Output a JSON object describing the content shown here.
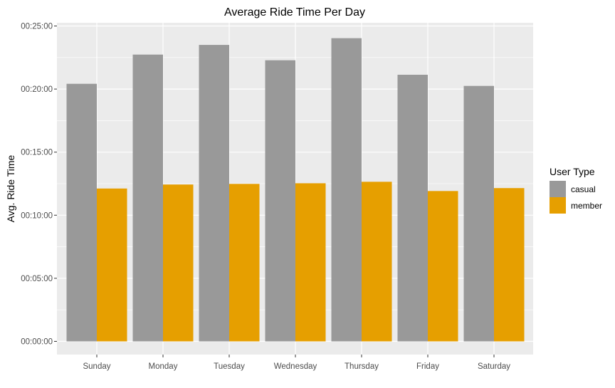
{
  "chart_data": {
    "type": "bar",
    "title": "Average Ride Time Per Day",
    "xlabel": "",
    "ylabel": "Avg. Ride Time",
    "categories": [
      "Sunday",
      "Monday",
      "Tuesday",
      "Wednesday",
      "Thursday",
      "Friday",
      "Saturday"
    ],
    "series": [
      {
        "name": "casual",
        "color": "#999999",
        "values_seconds": [
          1225,
          1364,
          1410,
          1337,
          1442,
          1268,
          1215
        ]
      },
      {
        "name": "member",
        "color": "#E69F00",
        "values_seconds": [
          727,
          746,
          749,
          752,
          759,
          715,
          729
        ]
      }
    ],
    "ylim_seconds": [
      0,
      1500
    ],
    "yticks": [
      {
        "label": "00:00:00",
        "value": 0
      },
      {
        "label": "00:05:00",
        "value": 300
      },
      {
        "label": "00:10:00",
        "value": 600
      },
      {
        "label": "00:15:00",
        "value": 900
      },
      {
        "label": "00:20:00",
        "value": 1200
      },
      {
        "label": "00:25:00",
        "value": 1500
      }
    ],
    "grid": true,
    "legend": {
      "title": "User Type",
      "position": "right"
    },
    "panel_background": "#EBEBEB",
    "gridline_color": "#FFFFFF"
  }
}
